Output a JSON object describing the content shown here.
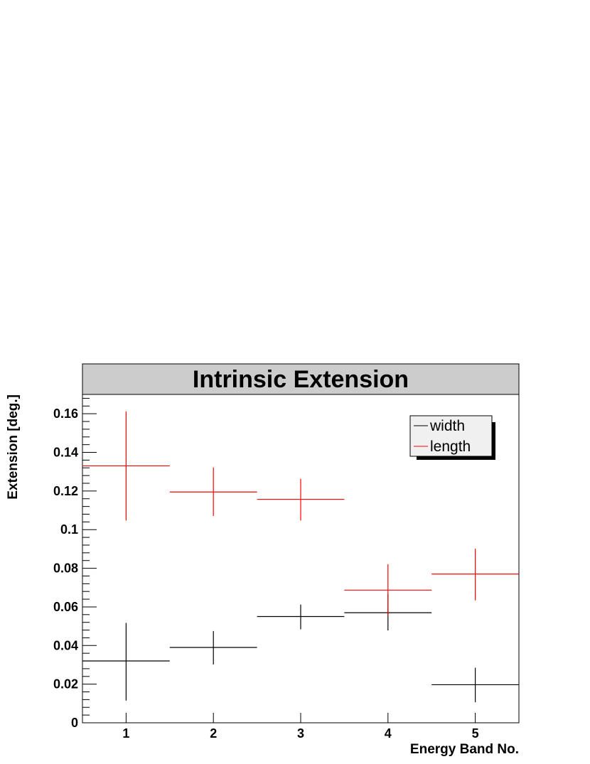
{
  "chart_data": {
    "type": "scatter",
    "title": "Intrinsic Extension",
    "xlabel": "Energy Band No.",
    "ylabel": "Extension [deg.]",
    "xlim": [
      0.5,
      5.5
    ],
    "ylim": [
      0,
      0.17
    ],
    "x_ticks": [
      "1",
      "2",
      "3",
      "4",
      "5"
    ],
    "y_ticks": [
      "0",
      "0.02",
      "0.04",
      "0.06",
      "0.08",
      "0.1",
      "0.12",
      "0.14",
      "0.16"
    ],
    "legend_placement": "top-right",
    "grid": false,
    "series": [
      {
        "name": "width",
        "color": "#000000",
        "points": [
          {
            "x": 1,
            "y": 0.032,
            "x_err": 0.5,
            "y_low": 0.0115,
            "y_high": 0.0517
          },
          {
            "x": 2,
            "y": 0.039,
            "x_err": 0.5,
            "y_low": 0.0302,
            "y_high": 0.0475
          },
          {
            "x": 3,
            "y": 0.055,
            "x_err": 0.5,
            "y_low": 0.0484,
            "y_high": 0.0612
          },
          {
            "x": 4,
            "y": 0.057,
            "x_err": 0.5,
            "y_low": 0.0478,
            "y_high": 0.0667
          },
          {
            "x": 5,
            "y": 0.0197,
            "x_err": 0.5,
            "y_low": 0.0106,
            "y_high": 0.0285
          }
        ]
      },
      {
        "name": "length",
        "color": "#ff0000",
        "points": [
          {
            "x": 1,
            "y": 0.133,
            "x_err": 0.5,
            "y_low": 0.1047,
            "y_high": 0.1612
          },
          {
            "x": 2,
            "y": 0.1195,
            "x_err": 0.5,
            "y_low": 0.1071,
            "y_high": 0.1322
          },
          {
            "x": 3,
            "y": 0.1157,
            "x_err": 0.5,
            "y_low": 0.1047,
            "y_high": 0.1263
          },
          {
            "x": 4,
            "y": 0.0687,
            "x_err": 0.5,
            "y_low": 0.0555,
            "y_high": 0.0821
          },
          {
            "x": 5,
            "y": 0.077,
            "x_err": 0.5,
            "y_low": 0.0634,
            "y_high": 0.0901
          }
        ]
      }
    ]
  }
}
